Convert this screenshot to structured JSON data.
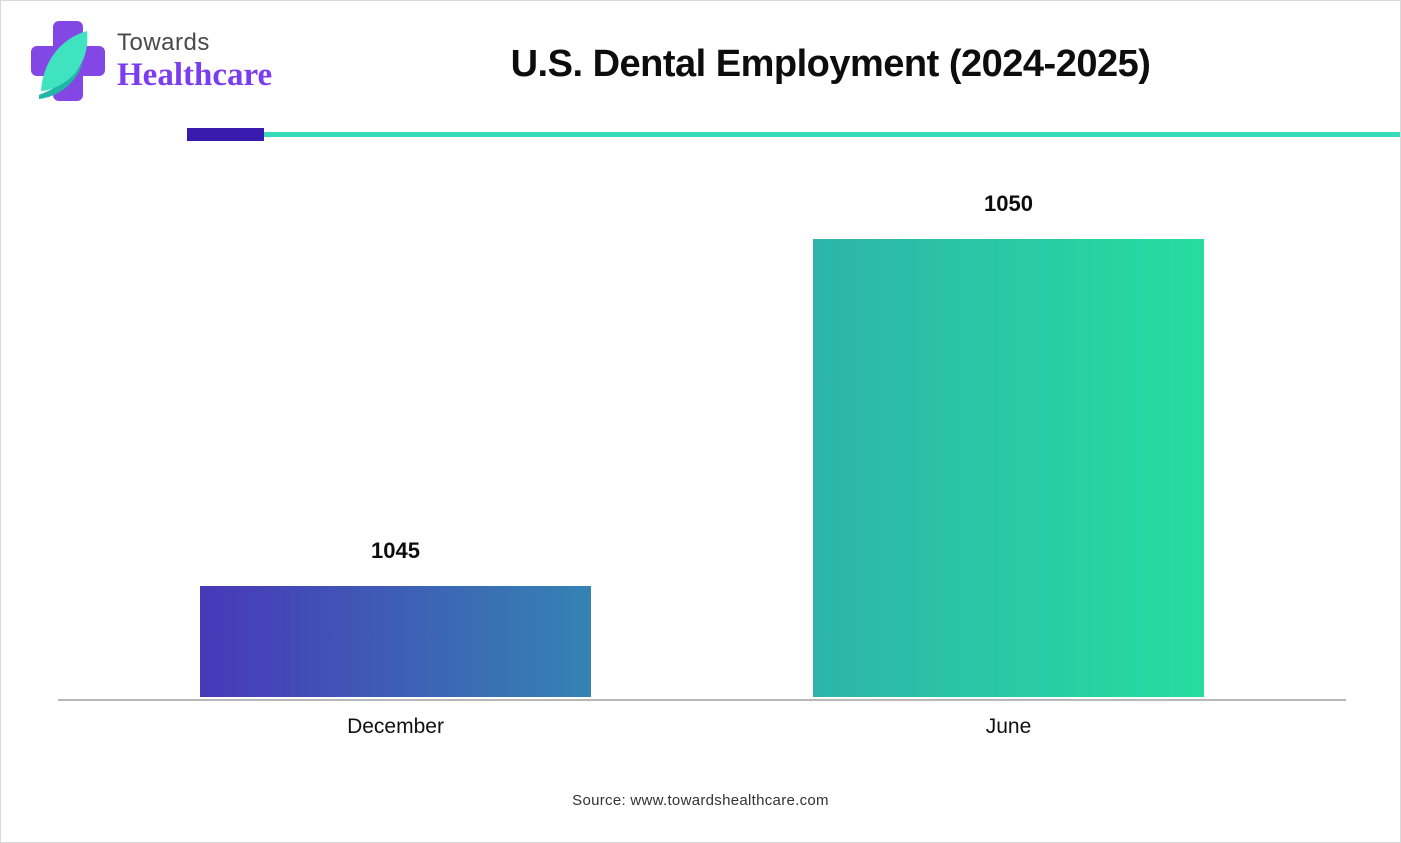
{
  "header": {
    "logo": {
      "line1": "Towards",
      "line2": "Healthcare"
    },
    "title": "U.S. Dental Employment (2024-2025)"
  },
  "colors": {
    "logo-cross-purple": "#8247e5",
    "logo-leaf-mint": "#40e3c0",
    "logo-swoosh-teal": "#1fb7a6",
    "logo-text-purple": "#7b3df0",
    "divider-purple": "#3a1bb0",
    "divider-teal": "#36dcba",
    "bar1-start": "#4838b8",
    "bar1-end": "#3583b3",
    "bar2-start": "#2db4aa",
    "bar2-end": "#26dd9f"
  },
  "chart_data": {
    "type": "bar",
    "title": "U.S. Dental Employment (2024-2025)",
    "categories": [
      "December",
      "June"
    ],
    "values": [
      1045,
      1050
    ],
    "value_labels": [
      "1045",
      "1050"
    ],
    "xlabel": "",
    "ylabel": "",
    "ylim": [
      1043.4,
      1050
    ],
    "grid": false,
    "legend": false,
    "bar_gradients": [
      [
        "#4838b8",
        "#3583b3"
      ],
      [
        "#2db4aa",
        "#26dd9f"
      ]
    ]
  },
  "footer": {
    "source": "Source: www.towardshealthcare.com"
  }
}
